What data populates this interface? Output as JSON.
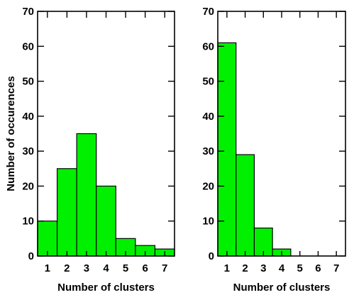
{
  "chart_data": [
    {
      "type": "bar",
      "categories": [
        "1",
        "2",
        "3",
        "4",
        "5",
        "6",
        "7"
      ],
      "values": [
        10,
        25,
        35,
        20,
        5,
        3,
        2
      ],
      "title": "",
      "xlabel": "Number of clusters",
      "ylabel": "Number of occurences",
      "ylim": [
        0,
        70
      ],
      "yticks": [
        "0",
        "10",
        "20",
        "30",
        "40",
        "50",
        "60",
        "70"
      ],
      "bar_color": "#00f000",
      "grid": false
    },
    {
      "type": "bar",
      "categories": [
        "1",
        "2",
        "3",
        "4",
        "5",
        "6",
        "7"
      ],
      "values": [
        61,
        29,
        8,
        2,
        0,
        0,
        0
      ],
      "title": "",
      "xlabel": "Number of clusters",
      "ylabel": "",
      "ylim": [
        0,
        70
      ],
      "yticks": [
        "0",
        "10",
        "20",
        "30",
        "40",
        "50",
        "60",
        "70"
      ],
      "bar_color": "#00f000",
      "grid": false
    }
  ]
}
